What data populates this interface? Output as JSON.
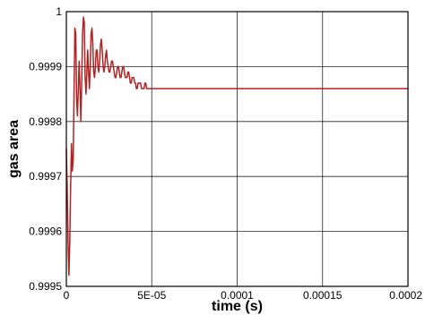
{
  "chart_data": {
    "type": "line",
    "title": "",
    "xlabel": "time (s)",
    "ylabel": "gas area",
    "xlim": [
      0,
      0.0002
    ],
    "ylim": [
      0.9995,
      1.0
    ],
    "grid": true,
    "x_ticks": [
      {
        "value": 0,
        "label": "0"
      },
      {
        "value": 5e-05,
        "label": "5E-05"
      },
      {
        "value": 0.0001,
        "label": "0.0001"
      },
      {
        "value": 0.00015,
        "label": "0.00015"
      },
      {
        "value": 0.0002,
        "label": "0.0002"
      }
    ],
    "y_ticks": [
      {
        "value": 0.9995,
        "label": "0.9995"
      },
      {
        "value": 0.9996,
        "label": "0.9996"
      },
      {
        "value": 0.9997,
        "label": "0.9997"
      },
      {
        "value": 0.9998,
        "label": "0.9998"
      },
      {
        "value": 0.9999,
        "label": "0.9999"
      },
      {
        "value": 1.0,
        "label": "1"
      }
    ],
    "series": [
      {
        "color": "#b22222",
        "x": [
          0.0,
          5e-07,
          1e-06,
          1.5e-06,
          2e-06,
          2.5e-06,
          3e-06,
          3.5e-06,
          4e-06,
          4.5e-06,
          5e-06,
          5.5e-06,
          6e-06,
          6.5e-06,
          7e-06,
          7.5e-06,
          8e-06,
          8.5e-06,
          9e-06,
          9.5e-06,
          1e-05,
          1.05e-05,
          1.1e-05,
          1.15e-05,
          1.2e-05,
          1.25e-05,
          1.3e-05,
          1.35e-05,
          1.4e-05,
          1.45e-05,
          1.5e-05,
          1.55e-05,
          1.6e-05,
          1.65e-05,
          1.7e-05,
          1.75e-05,
          1.8e-05,
          1.85e-05,
          1.9e-05,
          1.95e-05,
          2e-05,
          2.05e-05,
          2.1e-05,
          2.15e-05,
          2.2e-05,
          2.25e-05,
          2.3e-05,
          2.35e-05,
          2.4e-05,
          2.45e-05,
          2.5e-05,
          2.55e-05,
          2.6e-05,
          2.65e-05,
          2.7e-05,
          2.75e-05,
          2.8e-05,
          2.85e-05,
          2.9e-05,
          2.95e-05,
          3e-05,
          3.05e-05,
          3.1e-05,
          3.15e-05,
          3.2e-05,
          3.25e-05,
          3.3e-05,
          3.35e-05,
          3.4e-05,
          3.45e-05,
          3.5e-05,
          3.55e-05,
          3.6e-05,
          3.65e-05,
          3.7e-05,
          3.75e-05,
          3.8e-05,
          3.85e-05,
          3.9e-05,
          3.95e-05,
          4e-05,
          4.05e-05,
          4.1e-05,
          4.15e-05,
          4.2e-05,
          4.25e-05,
          4.3e-05,
          4.35e-05,
          4.4e-05,
          4.45e-05,
          4.5e-05,
          4.55e-05,
          4.6e-05,
          4.65e-05,
          4.7e-05,
          4.75e-05,
          4.8e-05,
          4.85e-05,
          4.9e-05,
          4.95e-05,
          5e-05,
          5.2e-05,
          5.4e-05,
          5.6e-05,
          5.8e-05,
          6e-05,
          6.2e-05,
          6.4e-05,
          6.6e-05,
          6.8e-05,
          7e-05,
          7.2e-05,
          7.4e-05,
          7.6e-05,
          7.8e-05,
          8e-05,
          8.2e-05,
          8.4e-05,
          8.6e-05,
          8.8e-05,
          9e-05,
          9.2e-05,
          9.4e-05,
          9.6e-05,
          9.8e-05,
          0.0001,
          0.000105,
          0.00011,
          0.000115,
          0.00012,
          0.000125,
          0.00013,
          0.000135,
          0.00014,
          0.000145,
          0.00015,
          0.000155,
          0.00016,
          0.000165,
          0.00017,
          0.000175,
          0.00018,
          0.000185,
          0.00019,
          0.000195,
          0.0002
        ],
        "y": [
          0.99975,
          0.99968,
          0.99958,
          0.99952,
          0.99958,
          0.99968,
          0.99976,
          0.99971,
          0.99973,
          0.99985,
          0.99997,
          0.99996,
          0.99984,
          0.99981,
          0.99986,
          0.99991,
          0.99986,
          0.9998,
          0.99987,
          0.99996,
          0.99999,
          0.99998,
          0.99988,
          0.99985,
          0.99989,
          0.99993,
          0.99989,
          0.99986,
          0.9999,
          0.99996,
          0.99997,
          0.99994,
          0.99989,
          0.99988,
          0.9999,
          0.99993,
          0.99993,
          0.9999,
          0.99989,
          0.99991,
          0.99994,
          0.99995,
          0.99993,
          0.9999,
          0.99989,
          0.9999,
          0.99992,
          0.99993,
          0.99991,
          0.9999,
          0.99989,
          0.99989,
          0.9999,
          0.99991,
          0.99991,
          0.9999,
          0.99989,
          0.99988,
          0.99988,
          0.99989,
          0.9999,
          0.9999,
          0.99989,
          0.99988,
          0.99988,
          0.99989,
          0.9999,
          0.9999,
          0.99989,
          0.99988,
          0.99988,
          0.99988,
          0.99989,
          0.99989,
          0.99988,
          0.99987,
          0.99987,
          0.99988,
          0.99988,
          0.99988,
          0.99987,
          0.99987,
          0.99986,
          0.99986,
          0.99987,
          0.99987,
          0.99987,
          0.99987,
          0.99986,
          0.99986,
          0.99986,
          0.99986,
          0.99987,
          0.99987,
          0.99986,
          0.99986,
          0.99986,
          0.99986,
          0.99986,
          0.99986,
          0.99986,
          0.99986,
          0.99986,
          0.99986,
          0.99986,
          0.99986,
          0.99986,
          0.99986,
          0.99986,
          0.99986,
          0.99986,
          0.99986,
          0.99986,
          0.99986,
          0.99986,
          0.99986,
          0.99986,
          0.99986,
          0.99986,
          0.99986,
          0.99986,
          0.99986,
          0.99986,
          0.99986,
          0.99986,
          0.99986,
          0.99986,
          0.99986,
          0.99986,
          0.99986,
          0.99986,
          0.99986,
          0.99986,
          0.99986,
          0.99986,
          0.99986,
          0.99986,
          0.99986,
          0.99986,
          0.99986,
          0.99986,
          0.99986,
          0.99986,
          0.99986,
          0.99986,
          0.99986
        ]
      }
    ]
  }
}
